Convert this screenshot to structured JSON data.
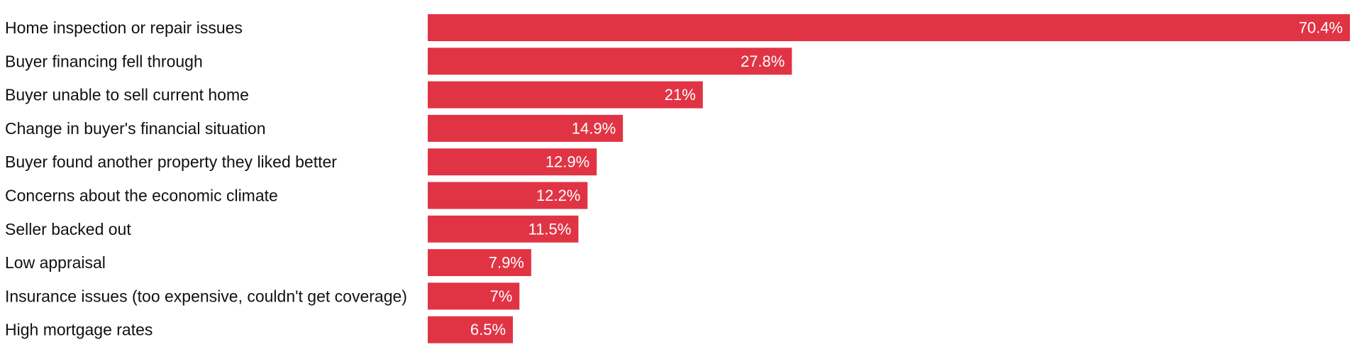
{
  "chart_data": {
    "type": "bar",
    "orientation": "horizontal",
    "categories": [
      "Home inspection or repair issues",
      "Buyer financing fell through",
      "Buyer unable to sell current home",
      "Change in buyer's financial situation",
      "Buyer found another property they liked better",
      "Concerns about the economic climate",
      "Seller backed out",
      "Low appraisal",
      "Insurance issues (too expensive, couldn't get coverage)",
      "High mortgage rates"
    ],
    "values": [
      70.4,
      27.8,
      21,
      14.9,
      12.9,
      12.2,
      11.5,
      7.9,
      7,
      6.5
    ],
    "value_labels": [
      "70.4%",
      "27.8%",
      "21%",
      "14.9%",
      "12.9%",
      "12.2%",
      "11.5%",
      "7.9%",
      "7%",
      "6.5%"
    ],
    "bar_color": "#e03445",
    "xlim": [
      0,
      70.4
    ],
    "grid": false,
    "legend": "none"
  }
}
